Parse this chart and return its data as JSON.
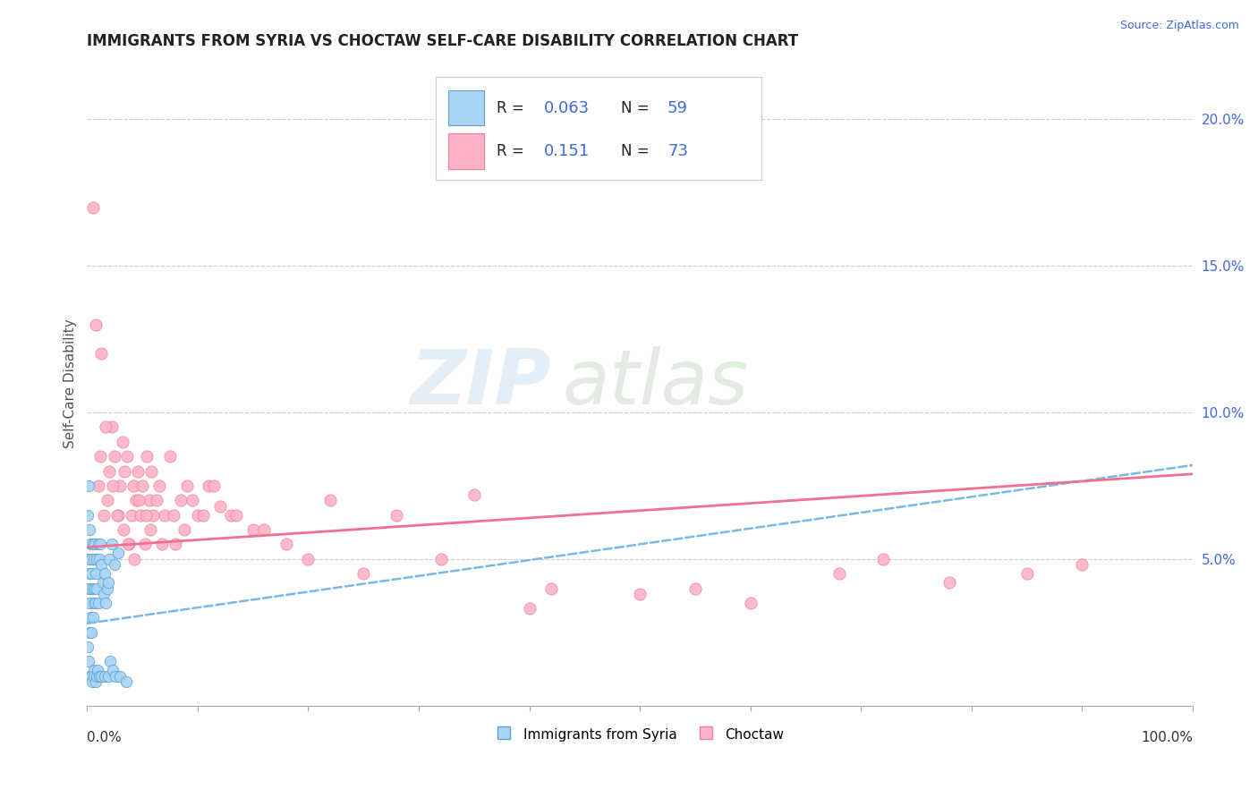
{
  "title": "IMMIGRANTS FROM SYRIA VS CHOCTAW SELF-CARE DISABILITY CORRELATION CHART",
  "source": "Source: ZipAtlas.com",
  "ylabel": "Self-Care Disability",
  "xlim": [
    0.0,
    1.0
  ],
  "ylim": [
    0.0,
    0.22
  ],
  "watermark_zip": "ZIP",
  "watermark_atlas": "atlas",
  "color_syria_fill": "#a8d4f5",
  "color_syria_edge": "#5ba3d0",
  "color_choctaw_fill": "#ffb3c6",
  "color_choctaw_edge": "#f080a0",
  "trendline_syria_color": "#7ab8e8",
  "trendline_choctaw_color": "#f07090",
  "title_color": "#222222",
  "source_color": "#4169e1",
  "ytick_color": "#4169e1",
  "legend_r_color": "#222222",
  "legend_val_color": "#4169e1",
  "syria_trendline": [
    0.028,
    0.082
  ],
  "choctaw_trendline": [
    0.054,
    0.079
  ],
  "choctaw_x": [
    0.005,
    0.01,
    0.012,
    0.015,
    0.018,
    0.02,
    0.022,
    0.025,
    0.028,
    0.03,
    0.032,
    0.034,
    0.036,
    0.038,
    0.04,
    0.042,
    0.044,
    0.046,
    0.048,
    0.05,
    0.052,
    0.054,
    0.056,
    0.058,
    0.06,
    0.065,
    0.07,
    0.075,
    0.08,
    0.085,
    0.09,
    0.1,
    0.11,
    0.12,
    0.13,
    0.15,
    0.18,
    0.22,
    0.28,
    0.35,
    0.008,
    0.013,
    0.017,
    0.023,
    0.027,
    0.033,
    0.037,
    0.043,
    0.047,
    0.053,
    0.057,
    0.063,
    0.068,
    0.078,
    0.088,
    0.095,
    0.105,
    0.115,
    0.135,
    0.16,
    0.2,
    0.25,
    0.32,
    0.42,
    0.55,
    0.68,
    0.72,
    0.78,
    0.85,
    0.9,
    0.5,
    0.6,
    0.4
  ],
  "choctaw_y": [
    0.17,
    0.075,
    0.085,
    0.065,
    0.07,
    0.08,
    0.095,
    0.085,
    0.065,
    0.075,
    0.09,
    0.08,
    0.085,
    0.055,
    0.065,
    0.075,
    0.07,
    0.08,
    0.065,
    0.075,
    0.055,
    0.085,
    0.07,
    0.08,
    0.065,
    0.075,
    0.065,
    0.085,
    0.055,
    0.07,
    0.075,
    0.065,
    0.075,
    0.068,
    0.065,
    0.06,
    0.055,
    0.07,
    0.065,
    0.072,
    0.13,
    0.12,
    0.095,
    0.075,
    0.065,
    0.06,
    0.055,
    0.05,
    0.07,
    0.065,
    0.06,
    0.07,
    0.055,
    0.065,
    0.06,
    0.07,
    0.065,
    0.075,
    0.065,
    0.06,
    0.05,
    0.045,
    0.05,
    0.04,
    0.04,
    0.045,
    0.05,
    0.042,
    0.045,
    0.048,
    0.038,
    0.035,
    0.033
  ],
  "syria_x": [
    0.0005,
    0.001,
    0.001,
    0.001,
    0.002,
    0.002,
    0.002,
    0.002,
    0.003,
    0.003,
    0.003,
    0.004,
    0.004,
    0.004,
    0.005,
    0.005,
    0.005,
    0.006,
    0.006,
    0.007,
    0.007,
    0.008,
    0.008,
    0.009,
    0.009,
    0.01,
    0.01,
    0.011,
    0.012,
    0.013,
    0.014,
    0.015,
    0.016,
    0.017,
    0.018,
    0.019,
    0.02,
    0.022,
    0.025,
    0.028,
    0.0008,
    0.0015,
    0.0025,
    0.0035,
    0.0045,
    0.006,
    0.0065,
    0.0075,
    0.0085,
    0.0095,
    0.011,
    0.013,
    0.016,
    0.019,
    0.021,
    0.023,
    0.026,
    0.03,
    0.035
  ],
  "syria_y": [
    0.065,
    0.075,
    0.05,
    0.04,
    0.06,
    0.045,
    0.035,
    0.025,
    0.055,
    0.04,
    0.03,
    0.05,
    0.045,
    0.025,
    0.055,
    0.04,
    0.03,
    0.05,
    0.035,
    0.055,
    0.04,
    0.045,
    0.035,
    0.05,
    0.04,
    0.055,
    0.035,
    0.05,
    0.055,
    0.048,
    0.042,
    0.038,
    0.045,
    0.035,
    0.04,
    0.042,
    0.05,
    0.055,
    0.048,
    0.052,
    0.02,
    0.015,
    0.01,
    0.01,
    0.008,
    0.012,
    0.01,
    0.008,
    0.01,
    0.012,
    0.01,
    0.01,
    0.01,
    0.01,
    0.015,
    0.012,
    0.01,
    0.01,
    0.008
  ]
}
